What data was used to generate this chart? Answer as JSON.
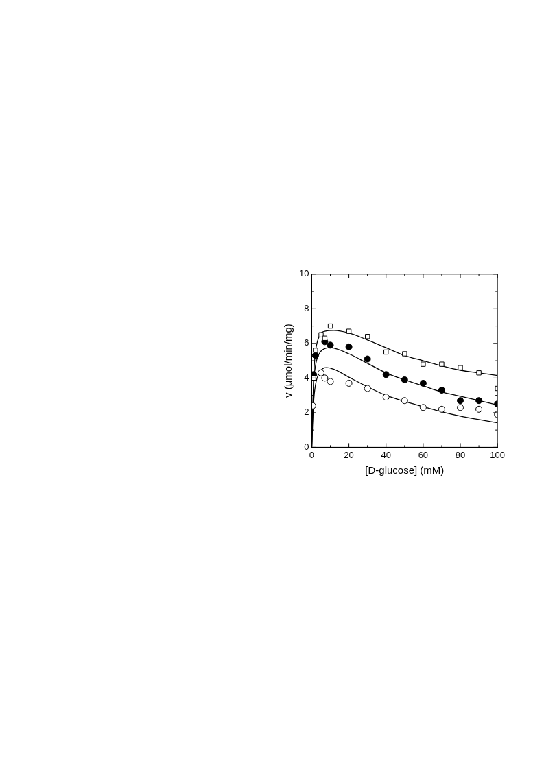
{
  "chart_data": {
    "type": "scatter",
    "xlabel": "[D-glucose] (mM)",
    "ylabel": "v (μmol/min/mg)",
    "xlim": [
      0,
      100
    ],
    "ylim": [
      0,
      10
    ],
    "xticks": [
      0,
      {
        "value": 10,
        "label": null
      },
      20,
      {
        "value": 30,
        "label": null
      },
      40,
      {
        "value": 50,
        "label": null
      },
      60,
      {
        "value": 70,
        "label": null
      },
      80,
      {
        "value": 90,
        "label": null
      },
      100
    ],
    "yticks": [
      0,
      {
        "value": 1,
        "label": null
      },
      2,
      {
        "value": 3,
        "label": null
      },
      4,
      {
        "value": 5,
        "label": null
      },
      6,
      {
        "value": 7,
        "label": null
      },
      8,
      {
        "value": 9,
        "label": null
      },
      10
    ],
    "grid": false,
    "legend": false,
    "series": [
      {
        "type": "scatter",
        "marker": "square",
        "color": "#ffffff",
        "x": [
          1,
          2,
          5,
          7,
          10,
          20,
          30,
          40,
          50,
          60,
          70,
          80,
          90,
          100
        ],
        "values": [
          4.0,
          5.6,
          6.5,
          6.3,
          7.0,
          6.7,
          6.4,
          5.5,
          5.4,
          4.8,
          4.8,
          4.6,
          4.3,
          3.4
        ]
      },
      {
        "type": "scatter",
        "marker": "circle",
        "color": "#000000",
        "x": [
          1,
          2,
          7,
          10,
          20,
          30,
          40,
          50,
          60,
          70,
          80,
          90,
          100
        ],
        "values": [
          4.2,
          5.3,
          6.1,
          5.9,
          5.8,
          5.1,
          4.2,
          3.9,
          3.7,
          3.3,
          2.7,
          2.7,
          2.5
        ]
      },
      {
        "type": "scatter",
        "marker": "circle",
        "color": "#ffffff",
        "x": [
          0.5,
          2,
          5,
          7,
          10,
          20,
          30,
          40,
          50,
          60,
          70,
          80,
          90,
          100
        ],
        "values": [
          2.4,
          null,
          4.3,
          4.0,
          3.8,
          3.7,
          3.4,
          2.9,
          2.7,
          2.3,
          2.2,
          2.3,
          2.2,
          1.9
        ]
      },
      {
        "type": "line",
        "marker": "none",
        "color": "#000000",
        "x": [
          0,
          1,
          2,
          4,
          7,
          12,
          20,
          30,
          40,
          50,
          60,
          70,
          80,
          90,
          100
        ],
        "values": [
          0,
          4.0,
          5.5,
          6.4,
          6.7,
          6.75,
          6.6,
          6.2,
          5.75,
          5.3,
          5.0,
          4.7,
          4.45,
          4.3,
          4.15
        ]
      },
      {
        "type": "line",
        "marker": "none",
        "color": "#000000",
        "x": [
          0,
          1,
          2,
          4,
          7,
          10,
          20,
          30,
          40,
          50,
          60,
          70,
          80,
          90,
          100
        ],
        "values": [
          0,
          3.6,
          4.7,
          5.4,
          5.7,
          5.75,
          5.4,
          4.85,
          4.3,
          3.9,
          3.55,
          3.2,
          2.95,
          2.7,
          2.45
        ]
      },
      {
        "type": "line",
        "marker": "none",
        "color": "#000000",
        "x": [
          0,
          1,
          2,
          4,
          8,
          12,
          20,
          30,
          40,
          50,
          60,
          70,
          80,
          90,
          100
        ],
        "values": [
          0,
          2.6,
          3.6,
          4.3,
          4.6,
          4.5,
          4.05,
          3.5,
          3.0,
          2.65,
          2.35,
          2.05,
          1.8,
          1.6,
          1.42
        ]
      }
    ]
  }
}
